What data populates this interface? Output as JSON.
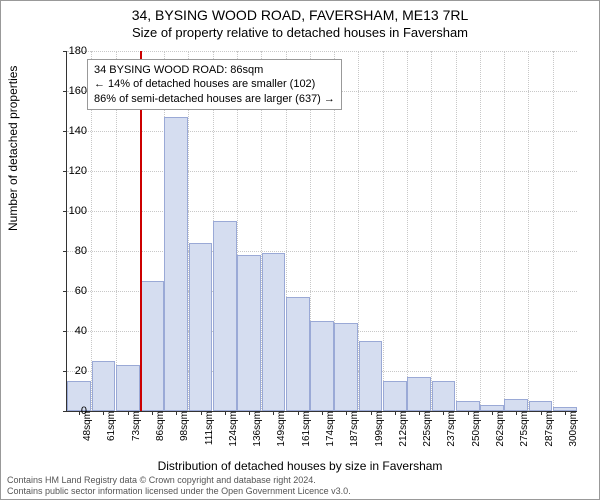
{
  "title_line1": "34, BYSING WOOD ROAD, FAVERSHAM, ME13 7RL",
  "title_line2": "Size of property relative to detached houses in Faversham",
  "ylabel": "Number of detached properties",
  "xlabel": "Distribution of detached houses by size in Faversham",
  "annotation": {
    "line1": "34 BYSING WOOD ROAD: 86sqm",
    "line2": "← 14% of detached houses are smaller (102)",
    "line3": "86% of semi-detached houses are larger (637) →"
  },
  "footnote_line1": "Contains HM Land Registry data © Crown copyright and database right 2024.",
  "footnote_line2": "Contains public sector information licensed under the Open Government Licence v3.0.",
  "chart": {
    "type": "histogram",
    "ymax": 180,
    "ytick_step": 20,
    "bar_color": "#d5ddf0",
    "bar_border_color": "#9aa9d6",
    "grid_color": "#c8c8c8",
    "marker_color": "#cc0000",
    "marker_x_index": 3,
    "x_categories": [
      "48sqm",
      "61sqm",
      "73sqm",
      "86sqm",
      "98sqm",
      "111sqm",
      "124sqm",
      "136sqm",
      "149sqm",
      "161sqm",
      "174sqm",
      "187sqm",
      "199sqm",
      "212sqm",
      "225sqm",
      "237sqm",
      "250sqm",
      "262sqm",
      "275sqm",
      "287sqm",
      "300sqm"
    ],
    "values": [
      15,
      25,
      23,
      65,
      147,
      84,
      95,
      78,
      79,
      57,
      45,
      44,
      35,
      15,
      17,
      15,
      5,
      3,
      6,
      5,
      2
    ]
  }
}
